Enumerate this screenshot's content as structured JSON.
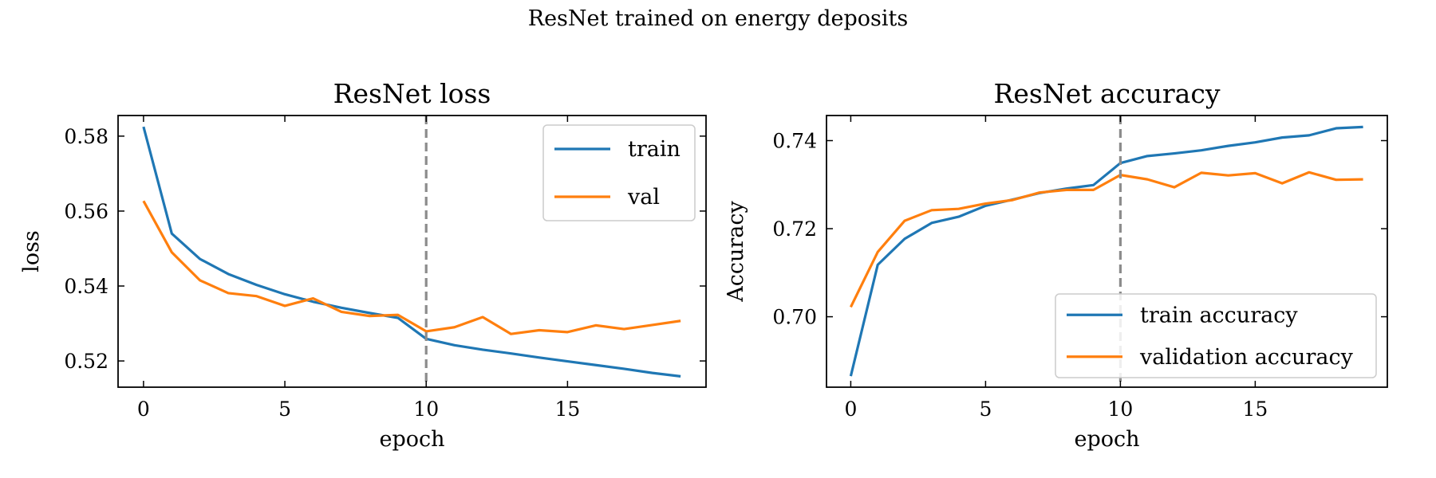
{
  "figure": {
    "suptitle": "ResNet trained on energy deposits"
  },
  "chart_data": [
    {
      "type": "line",
      "title": "ResNet loss",
      "xlabel": "epoch",
      "ylabel": "loss",
      "xlim": [
        -0.9,
        19.9
      ],
      "ylim": [
        0.513,
        0.5855
      ],
      "xticks": [
        0,
        5,
        10,
        15
      ],
      "xtick_labels": [
        "0",
        "5",
        "10",
        "15"
      ],
      "yticks": [
        0.52,
        0.54,
        0.56,
        0.58
      ],
      "ytick_labels": [
        "0.52",
        "0.54",
        "0.56",
        "0.58"
      ],
      "vline": {
        "x": 10,
        "color": "#8c8c8c",
        "style": "dashed"
      },
      "legend": {
        "position": "top-right"
      },
      "grid": false,
      "x": [
        0,
        1,
        2,
        3,
        4,
        5,
        6,
        7,
        8,
        9,
        10,
        11,
        12,
        13,
        14,
        15,
        16,
        17,
        18,
        19
      ],
      "series": [
        {
          "name": "train",
          "color": "#1f77b4",
          "values": [
            0.5825,
            0.554,
            0.5472,
            0.5432,
            0.5403,
            0.5378,
            0.5358,
            0.5342,
            0.5328,
            0.5315,
            0.5259,
            0.5242,
            0.523,
            0.522,
            0.5209,
            0.5199,
            0.5189,
            0.5179,
            0.5168,
            0.5159
          ]
        },
        {
          "name": "val",
          "color": "#ff7f0e",
          "values": [
            0.5627,
            0.549,
            0.5415,
            0.5381,
            0.5373,
            0.5347,
            0.5367,
            0.5331,
            0.532,
            0.5323,
            0.5279,
            0.529,
            0.5317,
            0.5272,
            0.5282,
            0.5277,
            0.5295,
            0.5285,
            0.5296,
            0.5307
          ]
        }
      ]
    },
    {
      "type": "line",
      "title": "ResNet accuracy",
      "xlabel": "epoch",
      "ylabel": "Accuracy",
      "xlim": [
        -0.9,
        19.9
      ],
      "ylim": [
        0.684,
        0.7457
      ],
      "xticks": [
        0,
        5,
        10,
        15
      ],
      "xtick_labels": [
        "0",
        "5",
        "10",
        "15"
      ],
      "yticks": [
        0.7,
        0.72,
        0.74
      ],
      "ytick_labels": [
        "0.70",
        "0.72",
        "0.74"
      ],
      "vline": {
        "x": 10,
        "color": "#8c8c8c",
        "style": "dashed"
      },
      "legend": {
        "position": "bottom-right"
      },
      "grid": false,
      "x": [
        0,
        1,
        2,
        3,
        4,
        5,
        6,
        7,
        8,
        9,
        10,
        11,
        12,
        13,
        14,
        15,
        16,
        17,
        18,
        19
      ],
      "series": [
        {
          "name": "train accuracy",
          "color": "#1f77b4",
          "values": [
            0.6865,
            0.7118,
            0.7177,
            0.7213,
            0.7227,
            0.7252,
            0.7266,
            0.7281,
            0.7291,
            0.7299,
            0.7349,
            0.7365,
            0.7371,
            0.7378,
            0.7388,
            0.7396,
            0.7407,
            0.7412,
            0.7428,
            0.7431
          ]
        },
        {
          "name": "validation accuracy",
          "color": "#ff7f0e",
          "values": [
            0.7022,
            0.7147,
            0.7218,
            0.7242,
            0.7245,
            0.7257,
            0.7265,
            0.7282,
            0.7288,
            0.7288,
            0.7322,
            0.7312,
            0.7294,
            0.7327,
            0.7321,
            0.7326,
            0.7303,
            0.7328,
            0.7311,
            0.7312
          ]
        }
      ]
    }
  ]
}
